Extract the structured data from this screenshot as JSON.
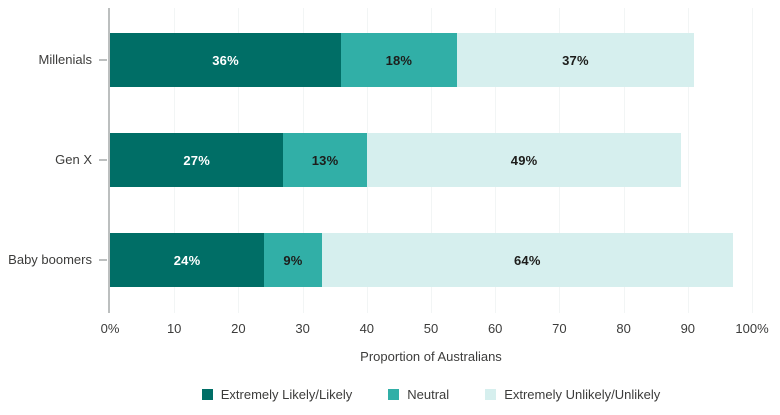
{
  "chart_data": {
    "type": "bar",
    "orientation": "horizontal",
    "stacked": true,
    "title": "",
    "xlabel": "Proportion of Australians",
    "ylabel": "",
    "xlim": [
      0,
      100
    ],
    "x_tick_labels": [
      "0%",
      "10",
      "20",
      "30",
      "40",
      "50",
      "60",
      "70",
      "80",
      "90",
      "100%"
    ],
    "grid": true,
    "legend_position": "bottom",
    "value_suffix": "%",
    "categories": [
      "Millenials",
      "Gen X",
      "Baby boomers"
    ],
    "series": [
      {
        "name": "Extremely Likely/Likely",
        "color": "#006e66",
        "label_color": "#ffffff",
        "values": [
          36,
          27,
          24
        ]
      },
      {
        "name": "Neutral",
        "color": "#31afa7",
        "label_color": "#1d1d1b",
        "values": [
          18,
          13,
          9
        ]
      },
      {
        "name": "Extremely Unlikely/Unlikely",
        "color": "#d6efee",
        "label_color": "#1d1d1b",
        "values": [
          37,
          49,
          64
        ]
      }
    ]
  },
  "style": {
    "axis_line_color": "#bcbfbf",
    "gridline_color": "#f2f5f5",
    "text_color": "#3c3c3b"
  }
}
